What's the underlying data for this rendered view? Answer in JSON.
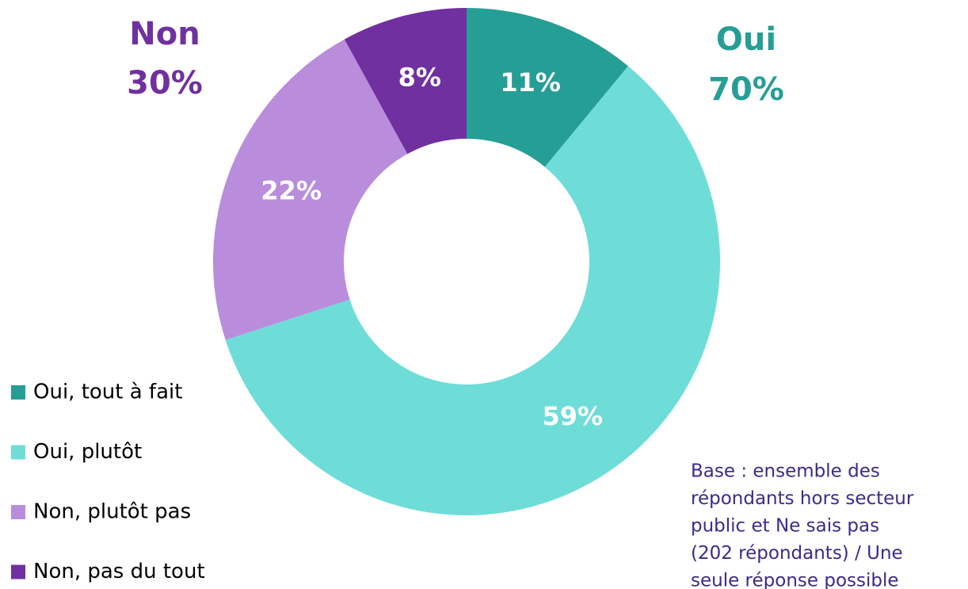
{
  "chart_data": {
    "type": "donut",
    "categories": [
      "Oui, tout à fait",
      "Oui, plutôt",
      "Non, plutôt pas",
      "Non, pas du tout"
    ],
    "values": [
      11,
      59,
      22,
      8
    ],
    "value_labels": [
      "11%",
      "59%",
      "22%",
      "8%"
    ],
    "colors": [
      "#259e96",
      "#6eddd8",
      "#b98ddc",
      "#7030a0"
    ],
    "annotations": [
      {
        "name": "Non",
        "text": "30%",
        "color": "#7030a0"
      },
      {
        "name": "Oui",
        "text": "70%",
        "color": "#259e96"
      }
    ],
    "note": [
      "Base : ensemble des",
      "répondants hors secteur",
      "public et Ne sais pas",
      "(202 répondants) / Une",
      "seule réponse possible"
    ]
  }
}
